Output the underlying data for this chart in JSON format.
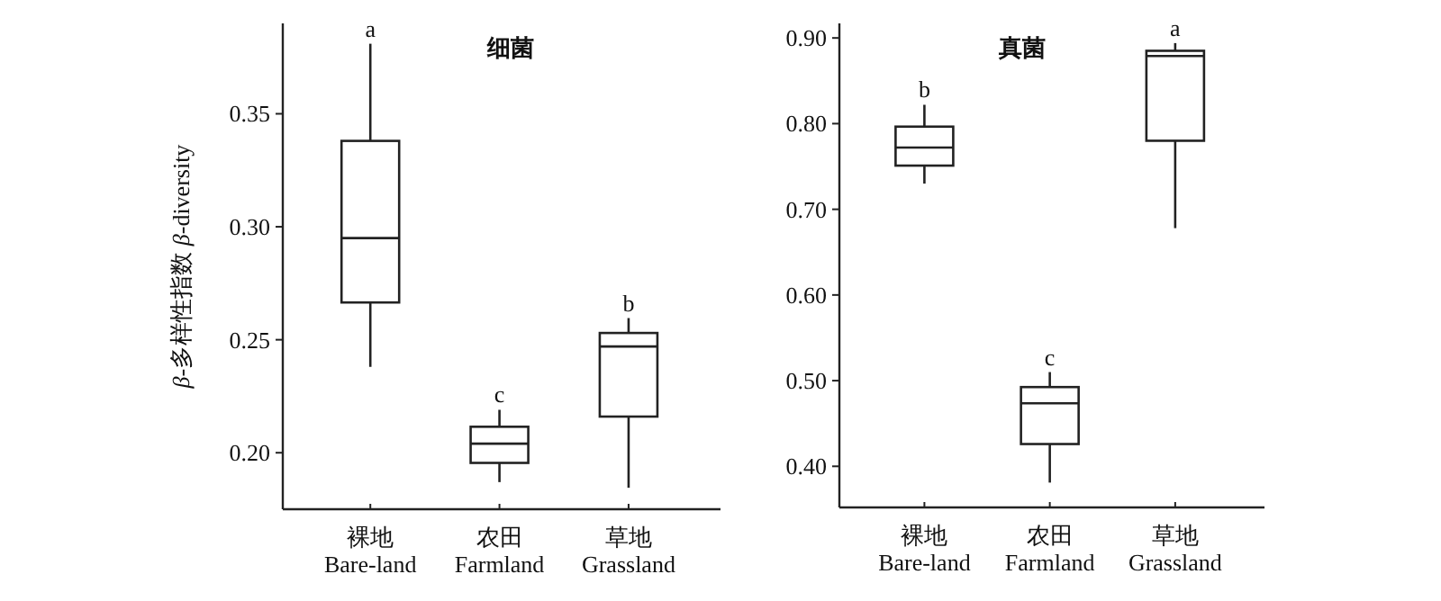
{
  "chart_data": [
    {
      "type": "box",
      "title": "细菌",
      "ylabel": "*β*-多样性指数 *β*-diversity",
      "categories": [
        "裸地\nBare-land",
        "农田\nFarmland",
        "草地\nGrassland"
      ],
      "ylim": [
        0.175,
        0.39
      ],
      "yticks": [
        {
          "value": 0.2,
          "label": "0.20"
        },
        {
          "value": 0.25,
          "label": "0.25"
        },
        {
          "value": 0.3,
          "label": "0.30"
        },
        {
          "value": 0.35,
          "label": "0.35"
        }
      ],
      "boxes": [
        {
          "low": 0.238,
          "q1": 0.2665,
          "median": 0.295,
          "q3": 0.338,
          "high": 0.381
        },
        {
          "low": 0.187,
          "q1": 0.1955,
          "median": 0.204,
          "q3": 0.2115,
          "high": 0.219
        },
        {
          "low": 0.1845,
          "q1": 0.216,
          "median": 0.247,
          "q3": 0.253,
          "high": 0.2596
        }
      ],
      "annotations": [
        {
          "text": "a",
          "x": "裸地\nBare-land",
          "y": 0.381
        },
        {
          "text": "c",
          "x": "农田\nFarmland",
          "y": 0.219
        },
        {
          "text": "b",
          "x": "草地\nGrassland",
          "y": 0.2596
        }
      ]
    },
    {
      "type": "box",
      "title": "真菌",
      "categories": [
        "裸地\nBare-land",
        "农田\nFarmland",
        "草地\nGrassland"
      ],
      "ylim": [
        0.352,
        0.917
      ],
      "yticks": [
        {
          "value": 0.4,
          "label": "0.40"
        },
        {
          "value": 0.5,
          "label": "0.50"
        },
        {
          "value": 0.6,
          "label": "0.60"
        },
        {
          "value": 0.7,
          "label": "0.70"
        },
        {
          "value": 0.8,
          "label": "0.80"
        },
        {
          "value": 0.9,
          "label": "0.90"
        }
      ],
      "boxes": [
        {
          "low": 0.73,
          "q1": 0.751,
          "median": 0.772,
          "q3": 0.7965,
          "high": 0.822
        },
        {
          "low": 0.381,
          "q1": 0.426,
          "median": 0.4735,
          "q3": 0.4925,
          "high": 0.51
        },
        {
          "low": 0.678,
          "q1": 0.78,
          "median": 0.879,
          "q3": 0.885,
          "high": 0.894
        }
      ],
      "annotations": [
        {
          "text": "b",
          "x": "裸地\nBare-land",
          "y": 0.822
        },
        {
          "text": "c",
          "x": "农田\nFarmland",
          "y": 0.51
        },
        {
          "text": "a",
          "x": "草地\nGrassland",
          "y": 0.894
        }
      ]
    }
  ]
}
